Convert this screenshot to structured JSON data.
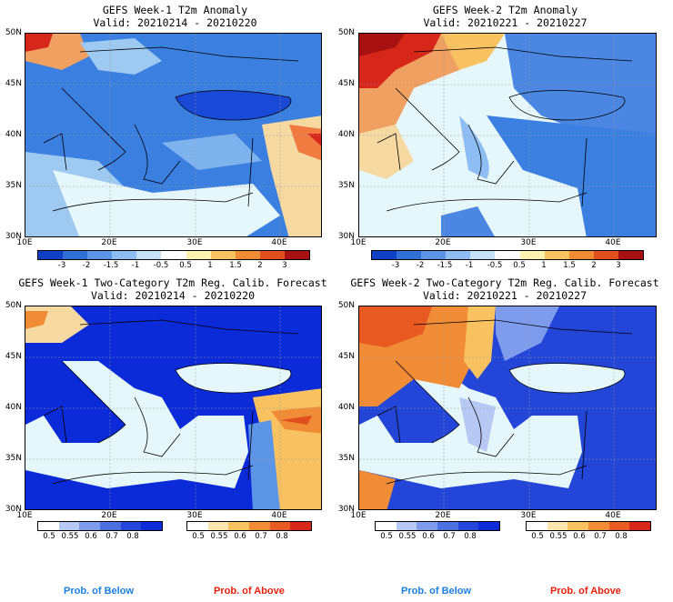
{
  "colors": {
    "sea": "#e6f7fb",
    "below_strong": "#0b2ad8",
    "above_strong": "#d7261a",
    "border": "#000000",
    "below_label": "#1c7fe0",
    "above_label": "#e61f0b"
  },
  "panels": [
    {
      "title": "GEFS Week-1 T2m Anomaly",
      "valid": "Valid: 20210214 - 20210220",
      "lat_labels": [
        "50N",
        "45N",
        "40N",
        "35N",
        "30N"
      ],
      "lon_labels": [
        "10E",
        "20E",
        "30E",
        "40E"
      ],
      "colorbar_labels": [
        "-3",
        "-2",
        "-1.5",
        "-1",
        "-0.5",
        "0.5",
        "1",
        "1.5",
        "2",
        "3"
      ]
    },
    {
      "title": "GEFS Week-2 T2m Anomaly",
      "valid": "Valid: 20210221 - 20210227",
      "lat_labels": [
        "50N",
        "45N",
        "40N",
        "35N",
        "30N"
      ],
      "lon_labels": [
        "10E",
        "20E",
        "30E",
        "40E"
      ],
      "colorbar_labels": [
        "-3",
        "-2",
        "-1.5",
        "-1",
        "-0.5",
        "0.5",
        "1",
        "1.5",
        "2",
        "3"
      ]
    },
    {
      "title": "GEFS Week-1 Two-Category T2m Reg. Calib. Forecast",
      "valid": "Valid: 20210214 - 20210220",
      "lat_labels": [
        "50N",
        "45N",
        "40N",
        "35N",
        "30N"
      ],
      "lon_labels": [
        "10E",
        "20E",
        "30E",
        "40E"
      ],
      "below_labels": [
        "0.5",
        "0.55",
        "0.6",
        "0.7",
        "0.8"
      ],
      "above_labels": [
        "0.5",
        "0.55",
        "0.6",
        "0.7",
        "0.8"
      ],
      "below_footer": "Prob. of Below",
      "above_footer": "Prob. of Above"
    },
    {
      "title": "GEFS Week-2 Two-Category T2m Reg. Calib. Forecast",
      "valid": "Valid: 20210221 - 20210227",
      "lat_labels": [
        "50N",
        "45N",
        "40N",
        "35N",
        "30N"
      ],
      "lon_labels": [
        "10E",
        "20E",
        "30E",
        "40E"
      ],
      "below_labels": [
        "0.5",
        "0.55",
        "0.6",
        "0.7",
        "0.8"
      ],
      "above_labels": [
        "0.5",
        "0.55",
        "0.6",
        "0.7",
        "0.8"
      ],
      "below_footer": "Prob. of Below",
      "above_footer": "Prob. of Above"
    }
  ]
}
